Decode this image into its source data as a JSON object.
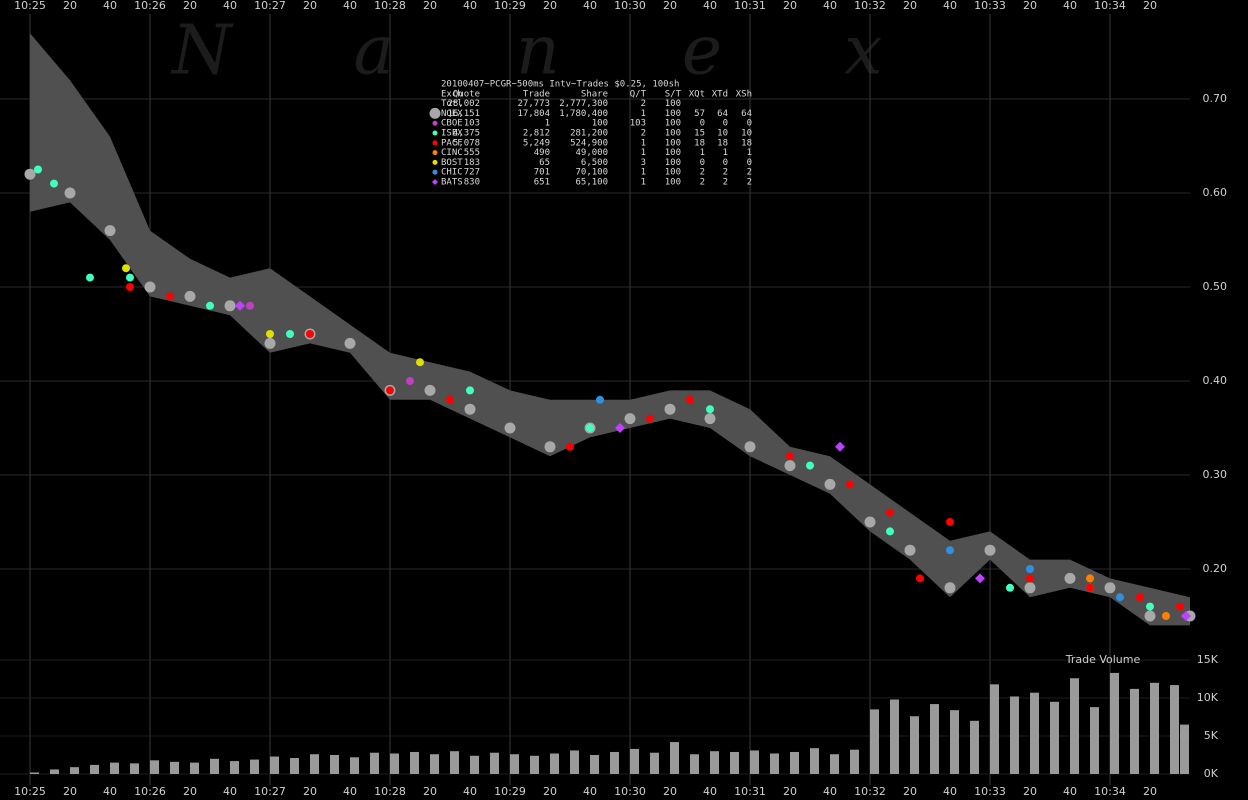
{
  "watermark": "Nanex",
  "chart_data": [
    {
      "type": "scatter",
      "title": "20100407~PCGR~500ms Intv~Trades $0.25, 100sh",
      "xlim": [
        "10:24:45",
        "10:34:40"
      ],
      "xticks": [
        {
          "value": "10:25:00",
          "label": "10:25"
        },
        {
          "value": "10:25:20",
          "label": "20"
        },
        {
          "value": "10:25:40",
          "label": "40"
        },
        {
          "value": "10:26:00",
          "label": "10:26"
        },
        {
          "value": "10:26:20",
          "label": "20"
        },
        {
          "value": "10:26:40",
          "label": "40"
        },
        {
          "value": "10:27:00",
          "label": "10:27"
        },
        {
          "value": "10:27:20",
          "label": "20"
        },
        {
          "value": "10:27:40",
          "label": "40"
        },
        {
          "value": "10:28:00",
          "label": "10:28"
        },
        {
          "value": "10:28:20",
          "label": "20"
        },
        {
          "value": "10:28:40",
          "label": "40"
        },
        {
          "value": "10:29:00",
          "label": "10:29"
        },
        {
          "value": "10:29:20",
          "label": "20"
        },
        {
          "value": "10:29:40",
          "label": "40"
        },
        {
          "value": "10:30:00",
          "label": "10:30"
        },
        {
          "value": "10:30:20",
          "label": "20"
        },
        {
          "value": "10:30:40",
          "label": "40"
        },
        {
          "value": "10:31:00",
          "label": "10:31"
        },
        {
          "value": "10:31:20",
          "label": "20"
        },
        {
          "value": "10:31:40",
          "label": "40"
        },
        {
          "value": "10:32:00",
          "label": "10:32"
        },
        {
          "value": "10:32:20",
          "label": "20"
        },
        {
          "value": "10:32:40",
          "label": "40"
        },
        {
          "value": "10:33:00",
          "label": "10:33"
        },
        {
          "value": "10:33:20",
          "label": "20"
        },
        {
          "value": "10:33:40",
          "label": "40"
        },
        {
          "value": "10:34:00",
          "label": "10:34"
        },
        {
          "value": "10:34:20",
          "label": "20"
        }
      ],
      "ylim": [
        0.1,
        0.8
      ],
      "yticks": [
        {
          "value": 0.2,
          "label": "0.20"
        },
        {
          "value": 0.3,
          "label": "0.30"
        },
        {
          "value": 0.4,
          "label": "0.40"
        },
        {
          "value": 0.5,
          "label": "0.50"
        },
        {
          "value": 0.6,
          "label": "0.60"
        },
        {
          "value": 0.7,
          "label": "0.70"
        }
      ],
      "grid": true,
      "band": {
        "color": "#505050",
        "x": [
          "10:25:00",
          "10:25:20",
          "10:25:40",
          "10:26:00",
          "10:26:20",
          "10:26:40",
          "10:27:00",
          "10:27:20",
          "10:27:40",
          "10:28:00",
          "10:28:20",
          "10:28:40",
          "10:29:00",
          "10:29:20",
          "10:29:40",
          "10:30:00",
          "10:30:20",
          "10:30:40",
          "10:31:00",
          "10:31:20",
          "10:31:40",
          "10:32:00",
          "10:32:20",
          "10:32:40",
          "10:33:00",
          "10:33:20",
          "10:33:40",
          "10:34:00",
          "10:34:20",
          "10:34:40"
        ],
        "upper": [
          0.77,
          0.72,
          0.66,
          0.56,
          0.53,
          0.51,
          0.52,
          0.49,
          0.46,
          0.43,
          0.42,
          0.41,
          0.39,
          0.38,
          0.38,
          0.38,
          0.39,
          0.39,
          0.37,
          0.33,
          0.32,
          0.29,
          0.26,
          0.23,
          0.24,
          0.21,
          0.21,
          0.19,
          0.18,
          0.17
        ],
        "lower": [
          0.58,
          0.59,
          0.55,
          0.49,
          0.48,
          0.47,
          0.43,
          0.44,
          0.43,
          0.38,
          0.38,
          0.36,
          0.34,
          0.32,
          0.34,
          0.35,
          0.36,
          0.35,
          0.32,
          0.3,
          0.28,
          0.24,
          0.21,
          0.17,
          0.21,
          0.17,
          0.18,
          0.17,
          0.14,
          0.14
        ]
      },
      "table": {
        "header": [
          "Exch",
          "Quote",
          "Trade",
          "Share",
          "Q/T",
          "S/T",
          "XQt",
          "XTd",
          "XSh"
        ],
        "totals": {
          "name": "Totl",
          "stats": [
            "28,002",
            "27,773",
            "2,777,300",
            "2",
            "100"
          ]
        }
      },
      "series": [
        {
          "name": "NQEX",
          "color": "#a8a8a8",
          "marker": "large-circle",
          "stats": [
            "16,151",
            "17,804",
            "1,780,400",
            "1",
            "100",
            "57",
            "64",
            "64"
          ],
          "x": [
            "10:25:00",
            "10:25:20",
            "10:25:40",
            "10:26:00",
            "10:26:20",
            "10:26:40",
            "10:27:00",
            "10:27:20",
            "10:27:40",
            "10:28:00",
            "10:28:20",
            "10:28:40",
            "10:29:00",
            "10:29:20",
            "10:29:40",
            "10:30:00",
            "10:30:20",
            "10:30:40",
            "10:31:00",
            "10:31:20",
            "10:31:40",
            "10:32:00",
            "10:32:20",
            "10:32:40",
            "10:33:00",
            "10:33:20",
            "10:33:40",
            "10:34:00",
            "10:34:20",
            "10:34:40"
          ],
          "values": [
            0.62,
            0.6,
            0.56,
            0.5,
            0.49,
            0.48,
            0.44,
            0.45,
            0.44,
            0.39,
            0.39,
            0.37,
            0.35,
            0.33,
            0.35,
            0.36,
            0.37,
            0.36,
            0.33,
            0.31,
            0.29,
            0.25,
            0.22,
            0.18,
            0.22,
            0.18,
            0.19,
            0.18,
            0.15,
            0.15
          ]
        },
        {
          "name": "CBOE",
          "color": "#c040c0",
          "marker": "circle",
          "stats": [
            "103",
            "1",
            "100",
            "103",
            "100",
            "0",
            "0",
            "0"
          ],
          "x": [
            "10:26:50",
            "10:28:10"
          ],
          "values": [
            0.48,
            0.4
          ]
        },
        {
          "name": "ISEX",
          "color": "#40ffc0",
          "marker": "circle",
          "stats": [
            "4,375",
            "2,812",
            "281,200",
            "2",
            "100",
            "15",
            "10",
            "10"
          ],
          "x": [
            "10:25:04",
            "10:25:12",
            "10:25:30",
            "10:25:50",
            "10:26:30",
            "10:27:10",
            "10:28:00",
            "10:28:40",
            "10:29:40",
            "10:30:40",
            "10:31:30",
            "10:32:10",
            "10:33:10",
            "10:33:50",
            "10:34:20"
          ],
          "values": [
            0.625,
            0.61,
            0.51,
            0.51,
            0.48,
            0.45,
            0.39,
            0.39,
            0.35,
            0.37,
            0.31,
            0.24,
            0.18,
            0.18,
            0.16
          ]
        },
        {
          "name": "PACF",
          "color": "#ff0000",
          "marker": "circle",
          "stats": [
            "5,078",
            "5,249",
            "524,900",
            "1",
            "100",
            "18",
            "18",
            "18"
          ],
          "x": [
            "10:25:50",
            "10:26:10",
            "10:27:20",
            "10:28:00",
            "10:28:30",
            "10:29:30",
            "10:30:10",
            "10:30:30",
            "10:31:20",
            "10:31:50",
            "10:32:10",
            "10:32:25",
            "10:32:40",
            "10:33:20",
            "10:33:50",
            "10:34:15",
            "10:34:35"
          ],
          "values": [
            0.5,
            0.49,
            0.45,
            0.39,
            0.38,
            0.33,
            0.36,
            0.38,
            0.32,
            0.29,
            0.26,
            0.19,
            0.25,
            0.19,
            0.18,
            0.17,
            0.16
          ]
        },
        {
          "name": "CINC",
          "color": "#ff8000",
          "marker": "circle",
          "stats": [
            "555",
            "490",
            "49,000",
            "1",
            "100",
            "1",
            "1",
            "1"
          ],
          "x": [
            "10:33:50",
            "10:34:28"
          ],
          "values": [
            0.19,
            0.15
          ]
        },
        {
          "name": "BOST",
          "color": "#e0e000",
          "marker": "circle",
          "stats": [
            "183",
            "65",
            "6,500",
            "3",
            "100",
            "0",
            "0",
            "0"
          ],
          "x": [
            "10:25:48",
            "10:27:00",
            "10:28:15"
          ],
          "values": [
            0.52,
            0.45,
            0.42
          ]
        },
        {
          "name": "CHIC",
          "color": "#3090e0",
          "marker": "circle",
          "stats": [
            "727",
            "701",
            "70,100",
            "1",
            "100",
            "2",
            "2",
            "2"
          ],
          "x": [
            "10:29:45",
            "10:32:40",
            "10:33:20",
            "10:34:05"
          ],
          "values": [
            0.38,
            0.22,
            0.2,
            0.17
          ]
        },
        {
          "name": "BATS",
          "color": "#c040ff",
          "marker": "diamond",
          "stats": [
            "830",
            "651",
            "65,100",
            "1",
            "100",
            "2",
            "2",
            "2"
          ],
          "x": [
            "10:26:45",
            "10:29:55",
            "10:31:45",
            "10:32:55",
            "10:34:38"
          ],
          "values": [
            0.48,
            0.35,
            0.33,
            0.19,
            0.15
          ]
        }
      ]
    },
    {
      "type": "bar",
      "title": "Trade Volume",
      "color": "#9a9a9a",
      "ylim": [
        0,
        15000
      ],
      "yticks": [
        {
          "value": 0,
          "label": "0K"
        },
        {
          "value": 5000,
          "label": "5K"
        },
        {
          "value": 10000,
          "label": "10K"
        },
        {
          "value": 15000,
          "label": "15K"
        }
      ],
      "x": [
        "10:25:00",
        "10:25:10",
        "10:25:20",
        "10:25:30",
        "10:25:40",
        "10:25:50",
        "10:26:00",
        "10:26:10",
        "10:26:20",
        "10:26:30",
        "10:26:40",
        "10:26:50",
        "10:27:00",
        "10:27:10",
        "10:27:20",
        "10:27:30",
        "10:27:40",
        "10:27:50",
        "10:28:00",
        "10:28:10",
        "10:28:20",
        "10:28:30",
        "10:28:40",
        "10:28:50",
        "10:29:00",
        "10:29:10",
        "10:29:20",
        "10:29:30",
        "10:29:40",
        "10:29:50",
        "10:30:00",
        "10:30:10",
        "10:30:20",
        "10:30:30",
        "10:30:40",
        "10:30:50",
        "10:31:00",
        "10:31:10",
        "10:31:20",
        "10:31:30",
        "10:31:40",
        "10:31:50",
        "10:32:00",
        "10:32:10",
        "10:32:20",
        "10:32:30",
        "10:32:40",
        "10:32:50",
        "10:33:00",
        "10:33:10",
        "10:33:20",
        "10:33:30",
        "10:33:40",
        "10:33:50",
        "10:34:00",
        "10:34:10",
        "10:34:20",
        "10:34:30",
        "10:34:35"
      ],
      "values": [
        200,
        600,
        900,
        1200,
        1500,
        1400,
        1800,
        1600,
        1500,
        2000,
        1700,
        1900,
        2300,
        2100,
        2600,
        2500,
        2200,
        2800,
        2700,
        2900,
        2600,
        3000,
        2400,
        2800,
        2600,
        2400,
        2700,
        3100,
        2500,
        2900,
        3300,
        2800,
        4200,
        2600,
        3000,
        2900,
        3100,
        2700,
        2900,
        3400,
        2600,
        3200,
        8500,
        9800,
        7600,
        9200,
        8400,
        7000,
        11800,
        10200,
        10700,
        9500,
        12600,
        8800,
        13300,
        11200,
        12000,
        11700,
        6500
      ]
    }
  ]
}
